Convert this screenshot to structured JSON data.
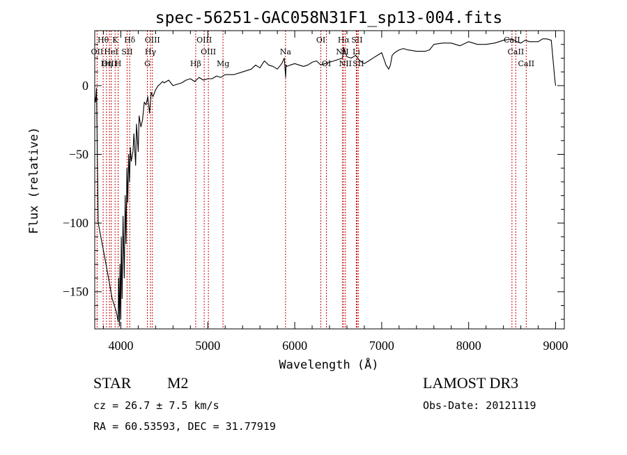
{
  "chart_data": {
    "type": "line",
    "title": "spec-56251-GAC058N31F1_sp13-004.fits",
    "xlabel": "Wavelength (Å)",
    "ylabel": "Flux (relative)",
    "xlim": [
      3700,
      9100
    ],
    "ylim": [
      -177,
      40
    ],
    "xticks": [
      {
        "value": 4000,
        "label": "4000"
      },
      {
        "value": 5000,
        "label": "5000"
      },
      {
        "value": 6000,
        "label": "6000"
      },
      {
        "value": 7000,
        "label": "7000"
      },
      {
        "value": 8000,
        "label": "8000"
      },
      {
        "value": 9000,
        "label": "9000"
      }
    ],
    "yticks": [
      {
        "value": 0,
        "label": "0"
      },
      {
        "value": -50,
        "label": "−50"
      },
      {
        "value": -100,
        "label": "−100"
      },
      {
        "value": -150,
        "label": "−150"
      }
    ],
    "grid": false,
    "series": [
      {
        "x": [
          3700,
          3710,
          3720,
          3740,
          3800,
          3850,
          3900,
          3950,
          3970,
          3975,
          3985,
          3990,
          4000,
          4005,
          4015,
          4025,
          4040,
          4050,
          4060,
          4070,
          4080,
          4090,
          4100,
          4110,
          4120,
          4140,
          4150,
          4170,
          4180,
          4200,
          4210,
          4230,
          4250,
          4270,
          4290,
          4310,
          4330,
          4350,
          4370,
          4400,
          4430,
          4450,
          4480,
          4500,
          4550,
          4600,
          4650,
          4700,
          4750,
          4800,
          4850,
          4900,
          4950,
          5000,
          5050,
          5100,
          5150,
          5200,
          5300,
          5400,
          5500,
          5550,
          5600,
          5650,
          5700,
          5750,
          5800,
          5850,
          5880,
          5895,
          5900,
          5910,
          5950,
          6000,
          6050,
          6100,
          6150,
          6200,
          6250,
          6300,
          6350,
          6400,
          6450,
          6500,
          6550,
          6560,
          6600,
          6650,
          6700,
          6750,
          6800,
          6850,
          6900,
          6950,
          7000,
          7050,
          7080,
          7100,
          7120,
          7150,
          7200,
          7250,
          7300,
          7400,
          7500,
          7550,
          7600,
          7700,
          7800,
          7900,
          8000,
          8100,
          8200,
          8300,
          8400,
          8500,
          8550,
          8600,
          8650,
          8700,
          8800,
          8850,
          8900,
          8950,
          8990,
          9000
        ],
        "y": [
          -8,
          -12,
          -2,
          -100,
          -120,
          -137,
          -155,
          -165,
          -172,
          -140,
          -175,
          -130,
          -170,
          -110,
          -155,
          -95,
          -140,
          -80,
          -115,
          -60,
          -85,
          -50,
          -70,
          -45,
          -55,
          -48,
          -35,
          -58,
          -28,
          -48,
          -22,
          -30,
          -25,
          -12,
          -14,
          -8,
          -20,
          -5,
          -8,
          -3,
          0,
          1,
          3,
          2,
          4,
          0,
          1,
          2,
          4,
          5,
          3,
          6,
          4,
          5,
          5,
          7,
          6,
          8,
          8,
          10,
          12,
          15,
          13,
          18,
          15,
          14,
          12,
          16,
          20,
          6,
          15,
          14,
          15,
          16,
          15,
          14,
          15,
          17,
          18,
          15,
          16,
          17,
          18,
          19,
          20,
          28,
          21,
          20,
          22,
          18,
          16,
          18,
          20,
          22,
          24,
          15,
          12,
          15,
          22,
          24,
          26,
          27,
          26,
          25,
          25,
          26,
          30,
          31,
          31,
          29,
          32,
          30,
          30,
          31,
          33,
          34,
          32,
          31,
          33,
          32,
          32,
          34,
          34,
          33,
          5,
          0
        ]
      }
    ],
    "spectral_lines": [
      {
        "name": "Hθ",
        "x": 3797,
        "row": 1
      },
      {
        "name": "OII",
        "x": 3727,
        "row": 2
      },
      {
        "name": "OIII",
        "x": 3869,
        "row": 3
      },
      {
        "name": "K",
        "x": 3934,
        "row": 1
      },
      {
        "name": "HeI",
        "x": 3889,
        "row": 2
      },
      {
        "name": "Hη",
        "x": 3835,
        "row": 3
      },
      {
        "name": "Hδ",
        "x": 4102,
        "row": 1
      },
      {
        "name": "SII",
        "x": 4072,
        "row": 2
      },
      {
        "name": "H",
        "x": 3969,
        "row": 3
      },
      {
        "name": "OIII",
        "x": 4363,
        "row": 1
      },
      {
        "name": "Hγ",
        "x": 4341,
        "row": 2
      },
      {
        "name": "G",
        "x": 4305,
        "row": 3
      },
      {
        "name": "OIII",
        "x": 4959,
        "row": 1
      },
      {
        "name": "OIII",
        "x": 5007,
        "row": 2
      },
      {
        "name": "Hβ",
        "x": 4861,
        "row": 3
      },
      {
        "name": "Mg",
        "x": 5175,
        "row": 3
      },
      {
        "name": "Na",
        "x": 5894,
        "row": 2
      },
      {
        "name": "OI",
        "x": 6300,
        "row": 1
      },
      {
        "name": "OI",
        "x": 6364,
        "row": 3
      },
      {
        "name": "Hα",
        "x": 6563,
        "row": 1
      },
      {
        "name": "SII",
        "x": 6716,
        "row": 1
      },
      {
        "name": "NII",
        "x": 6548,
        "row": 2
      },
      {
        "name": "Li",
        "x": 6708,
        "row": 2
      },
      {
        "name": "NII",
        "x": 6583,
        "row": 3
      },
      {
        "name": "SII",
        "x": 6731,
        "row": 3
      },
      {
        "name": "CaII",
        "x": 8498,
        "row": 1
      },
      {
        "name": "CaII",
        "x": 8542,
        "row": 2
      },
      {
        "name": "CaII",
        "x": 8662,
        "row": 3
      }
    ],
    "colors": {
      "spectrum": "#000000",
      "line_markers": "#c00000"
    }
  },
  "info": {
    "object_class": "STAR",
    "subclass": "M2",
    "survey": "LAMOST DR3",
    "redshift": "cz = 26.7 ± 7.5 km/s",
    "obs_date": "Obs-Date: 20121119",
    "coords": "RA =  60.53593, DEC =  31.77919"
  }
}
